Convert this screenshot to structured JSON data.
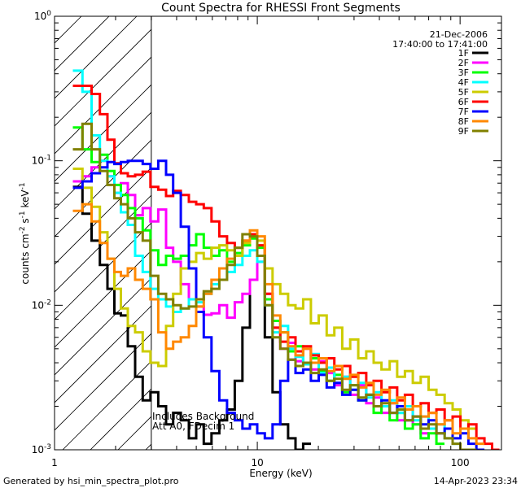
{
  "chart_data": {
    "type": "line",
    "title": "Count Spectra for RHESSI Front Segments",
    "xlabel": "Energy (keV)",
    "ylabel": {
      "base": "counts cm",
      "exp1": "-2",
      "mid1": " s",
      "exp2": "-1",
      "mid2": " keV",
      "exp3": "-1"
    },
    "xscale": "log",
    "yscale": "log",
    "xlim": [
      1.0,
      160.0
    ],
    "ylim": [
      0.001,
      1.0
    ],
    "x_ticks": [
      {
        "value": 1,
        "label": "1"
      },
      {
        "value": 10,
        "label": "10"
      },
      {
        "value": 100,
        "label": "100"
      }
    ],
    "y_ticks": [
      {
        "value": 1.0,
        "base": "10",
        "exp": "0"
      },
      {
        "value": 0.1,
        "base": "10",
        "exp": "-1"
      },
      {
        "value": 0.01,
        "base": "10",
        "exp": "-2"
      },
      {
        "value": 0.001,
        "base": "10",
        "exp": "-3"
      }
    ],
    "hatched_region_keV": [
      1.0,
      3.0
    ],
    "date": "21-Dec-2006",
    "time_range": "17:40:00 to 17:41:00",
    "annotation_lines": [
      "Includes Background",
      "Att A0, FDecim 1"
    ],
    "legend_position": "top-right",
    "series": [
      {
        "name": "1F",
        "color": "#000000",
        "x": [
          1.3,
          1.45,
          1.6,
          1.75,
          1.9,
          2.05,
          2.2,
          2.4,
          2.6,
          2.85,
          3.1,
          3.4,
          3.7,
          4.0,
          4.4,
          4.8,
          5.2,
          5.7,
          6.2,
          6.8,
          7.4,
          8.1,
          8.8,
          9.6,
          10.4,
          11.4,
          12.4,
          13.6,
          14.8,
          16.1,
          17.6
        ],
        "values": [
          0.066,
          0.043,
          0.028,
          0.019,
          0.013,
          0.0088,
          0.0085,
          0.0052,
          0.0032,
          0.0022,
          0.0025,
          0.002,
          0.0015,
          0.0018,
          0.0016,
          0.0012,
          0.0015,
          0.0011,
          0.0013,
          0.0016,
          0.0019,
          0.003,
          0.007,
          0.015,
          0.022,
          0.006,
          0.0025,
          0.0015,
          0.0012,
          0.001,
          0.0011
        ]
      },
      {
        "name": "2F",
        "color": "#ff00ff",
        "x": [
          1.3,
          1.45,
          1.6,
          1.75,
          1.9,
          2.05,
          2.2,
          2.4,
          2.6,
          2.85,
          3.1,
          3.4,
          3.7,
          4.0,
          4.4,
          4.8,
          5.2,
          5.7,
          6.2,
          6.8,
          7.4,
          8.1,
          8.8,
          9.6,
          10.4,
          11.4,
          12.4,
          13.6,
          14.8,
          16.1,
          17.6,
          19.2,
          21,
          23,
          25,
          27.5,
          30,
          33,
          36,
          39,
          43,
          47,
          51,
          56,
          61,
          67
        ],
        "values": [
          0.072,
          0.078,
          0.09,
          0.1,
          0.078,
          0.06,
          0.07,
          0.058,
          0.042,
          0.047,
          0.038,
          0.046,
          0.025,
          0.02,
          0.014,
          0.011,
          0.0098,
          0.0086,
          0.0088,
          0.01,
          0.0082,
          0.0105,
          0.012,
          0.015,
          0.02,
          0.012,
          0.007,
          0.005,
          0.0055,
          0.0041,
          0.005,
          0.0036,
          0.0041,
          0.0034,
          0.0028,
          0.0032,
          0.0024,
          0.0028,
          0.0021,
          0.0023,
          0.0018,
          0.0021,
          0.0016,
          0.0019,
          0.0015,
          0.0013
        ]
      },
      {
        "name": "3F",
        "color": "#00ff00",
        "x": [
          1.3,
          1.45,
          1.6,
          1.75,
          1.9,
          2.05,
          2.2,
          2.4,
          2.6,
          2.85,
          3.1,
          3.4,
          3.7,
          4.0,
          4.4,
          4.8,
          5.2,
          5.7,
          6.2,
          6.8,
          7.4,
          8.1,
          8.8,
          9.6,
          10.4,
          11.4,
          12.4,
          13.6,
          14.8,
          16.1,
          17.6,
          19.2,
          21,
          23,
          25,
          27.5,
          30,
          33,
          36,
          39,
          43,
          47,
          51,
          56,
          61,
          67,
          73,
          80
        ],
        "values": [
          0.17,
          0.12,
          0.098,
          0.11,
          0.085,
          0.068,
          0.058,
          0.047,
          0.04,
          0.033,
          0.024,
          0.019,
          0.022,
          0.021,
          0.022,
          0.026,
          0.031,
          0.025,
          0.022,
          0.024,
          0.02,
          0.023,
          0.026,
          0.029,
          0.025,
          0.011,
          0.0078,
          0.0065,
          0.0048,
          0.0052,
          0.004,
          0.0043,
          0.0035,
          0.003,
          0.0033,
          0.0025,
          0.0028,
          0.0022,
          0.0024,
          0.0018,
          0.002,
          0.0016,
          0.0018,
          0.0014,
          0.0015,
          0.0012,
          0.0013,
          0.0011
        ]
      },
      {
        "name": "4F",
        "color": "#00ffff",
        "x": [
          1.3,
          1.45,
          1.6,
          1.75,
          1.9,
          2.05,
          2.2,
          2.4,
          2.6,
          2.85,
          3.1,
          3.4,
          3.7,
          4.0,
          4.4,
          4.8,
          5.2,
          5.7,
          6.2,
          6.8,
          7.4,
          8.1,
          8.8,
          9.6,
          10.4,
          11.4,
          12.4,
          13.6,
          14.8,
          16.1,
          17.6,
          19.2,
          21,
          23,
          25,
          27.5,
          30,
          33,
          36,
          39,
          43,
          47,
          51,
          56,
          61,
          67,
          73,
          80,
          88,
          96
        ],
        "values": [
          0.42,
          0.3,
          0.15,
          0.1,
          0.078,
          0.06,
          0.044,
          0.036,
          0.022,
          0.017,
          0.013,
          0.011,
          0.0098,
          0.009,
          0.0095,
          0.011,
          0.0105,
          0.012,
          0.014,
          0.015,
          0.017,
          0.019,
          0.022,
          0.024,
          0.02,
          0.01,
          0.0065,
          0.0072,
          0.005,
          0.0044,
          0.0039,
          0.0046,
          0.0034,
          0.0037,
          0.0029,
          0.0032,
          0.0026,
          0.0029,
          0.0023,
          0.0025,
          0.002,
          0.0022,
          0.0018,
          0.002,
          0.0016,
          0.0017,
          0.0014,
          0.0015,
          0.0012,
          0.0011
        ]
      },
      {
        "name": "5F",
        "color": "#cccc00",
        "x": [
          1.3,
          1.45,
          1.6,
          1.75,
          1.9,
          2.05,
          2.2,
          2.4,
          2.6,
          2.85,
          3.1,
          3.4,
          3.7,
          4.0,
          4.4,
          4.8,
          5.2,
          5.7,
          6.2,
          6.8,
          7.4,
          8.1,
          8.8,
          9.6,
          10.4,
          11.4,
          12.4,
          13.6,
          14.8,
          16.1,
          17.6,
          19.2,
          21,
          23,
          25,
          27.5,
          30,
          33,
          36,
          39,
          43,
          47,
          51,
          56,
          61,
          67,
          73,
          80,
          88,
          96,
          105,
          115
        ],
        "values": [
          0.088,
          0.065,
          0.048,
          0.032,
          0.021,
          0.013,
          0.0095,
          0.0072,
          0.0065,
          0.0048,
          0.004,
          0.0038,
          0.0072,
          0.012,
          0.018,
          0.02,
          0.023,
          0.021,
          0.025,
          0.026,
          0.024,
          0.022,
          0.027,
          0.03,
          0.028,
          0.018,
          0.014,
          0.012,
          0.01,
          0.0095,
          0.011,
          0.0075,
          0.0085,
          0.0062,
          0.007,
          0.005,
          0.0058,
          0.0043,
          0.0048,
          0.004,
          0.0036,
          0.0041,
          0.0032,
          0.0035,
          0.0029,
          0.0032,
          0.0026,
          0.0024,
          0.0021,
          0.0019,
          0.0016,
          0.0014
        ]
      },
      {
        "name": "6F",
        "color": "#ff0000",
        "x": [
          1.3,
          1.45,
          1.6,
          1.75,
          1.9,
          2.05,
          2.2,
          2.4,
          2.6,
          2.85,
          3.1,
          3.4,
          3.7,
          4.0,
          4.4,
          4.8,
          5.2,
          5.7,
          6.2,
          6.8,
          7.4,
          8.1,
          8.8,
          9.6,
          10.4,
          11.4,
          12.4,
          13.6,
          14.8,
          16.1,
          17.6,
          19.2,
          21,
          23,
          25,
          27.5,
          30,
          33,
          36,
          39,
          43,
          47,
          51,
          56,
          61,
          67,
          73,
          80,
          88,
          96,
          105,
          115,
          126,
          138,
          150
        ],
        "values": [
          0.33,
          0.33,
          0.29,
          0.21,
          0.14,
          0.096,
          0.082,
          0.078,
          0.08,
          0.084,
          0.066,
          0.063,
          0.057,
          0.062,
          0.058,
          0.052,
          0.05,
          0.047,
          0.038,
          0.03,
          0.027,
          0.025,
          0.028,
          0.031,
          0.026,
          0.012,
          0.007,
          0.0056,
          0.006,
          0.0048,
          0.0052,
          0.0045,
          0.004,
          0.0043,
          0.0036,
          0.0038,
          0.0032,
          0.0034,
          0.0028,
          0.003,
          0.0025,
          0.0027,
          0.0022,
          0.0024,
          0.002,
          0.0021,
          0.0018,
          0.0019,
          0.0016,
          0.0017,
          0.0014,
          0.0015,
          0.0012,
          0.0011,
          0.001
        ]
      },
      {
        "name": "7F",
        "color": "#0000ff",
        "x": [
          1.3,
          1.45,
          1.6,
          1.75,
          1.9,
          2.05,
          2.2,
          2.4,
          2.6,
          2.85,
          3.1,
          3.4,
          3.7,
          4.0,
          4.4,
          4.8,
          5.2,
          5.7,
          6.2,
          6.8,
          7.4,
          8.1,
          8.8,
          9.6,
          10.4,
          11.4,
          12.4,
          13.6,
          14.8,
          16.1,
          17.6,
          19.2,
          21,
          23,
          25,
          27.5,
          30,
          33,
          36,
          39,
          43,
          47,
          51,
          56,
          61,
          67,
          73,
          80,
          88,
          96,
          105,
          115,
          126
        ],
        "values": [
          0.065,
          0.072,
          0.082,
          0.09,
          0.098,
          0.095,
          0.098,
          0.1,
          0.1,
          0.095,
          0.088,
          0.1,
          0.08,
          0.06,
          0.035,
          0.018,
          0.009,
          0.006,
          0.0035,
          0.0022,
          0.0018,
          0.0016,
          0.0014,
          0.0015,
          0.0013,
          0.0012,
          0.0015,
          0.003,
          0.0042,
          0.0034,
          0.0036,
          0.003,
          0.0033,
          0.0027,
          0.0029,
          0.0024,
          0.0026,
          0.0022,
          0.0024,
          0.002,
          0.0022,
          0.0018,
          0.002,
          0.0016,
          0.0017,
          0.0015,
          0.0016,
          0.0013,
          0.0014,
          0.0012,
          0.0013,
          0.0011,
          0.001
        ]
      },
      {
        "name": "8F",
        "color": "#ff8800",
        "x": [
          1.3,
          1.45,
          1.6,
          1.75,
          1.9,
          2.05,
          2.2,
          2.4,
          2.6,
          2.85,
          3.1,
          3.4,
          3.7,
          4.0,
          4.4,
          4.8,
          5.2,
          5.7,
          6.2,
          6.8,
          7.4,
          8.1,
          8.8,
          9.6,
          10.4,
          11.4,
          12.4,
          13.6,
          14.8,
          16.1,
          17.6,
          19.2,
          21,
          23,
          25,
          27.5,
          30,
          33,
          36,
          39,
          43,
          47,
          51,
          56,
          61,
          67,
          73,
          80,
          88,
          96,
          105,
          115,
          126
        ],
        "values": [
          0.045,
          0.05,
          0.038,
          0.027,
          0.021,
          0.017,
          0.016,
          0.018,
          0.015,
          0.013,
          0.011,
          0.0065,
          0.005,
          0.0056,
          0.006,
          0.0072,
          0.0098,
          0.012,
          0.015,
          0.018,
          0.021,
          0.025,
          0.028,
          0.033,
          0.03,
          0.014,
          0.0085,
          0.0065,
          0.0052,
          0.0045,
          0.005,
          0.004,
          0.0043,
          0.0035,
          0.0038,
          0.0031,
          0.0033,
          0.0027,
          0.0029,
          0.0024,
          0.0026,
          0.0021,
          0.0023,
          0.0019,
          0.002,
          0.0017,
          0.0018,
          0.0015,
          0.0016,
          0.0013,
          0.0014,
          0.0012,
          0.0011
        ]
      },
      {
        "name": "9F",
        "color": "#808000",
        "x": [
          1.3,
          1.45,
          1.6,
          1.75,
          1.9,
          2.05,
          2.2,
          2.4,
          2.6,
          2.85,
          3.1,
          3.4,
          3.7,
          4.0,
          4.4,
          4.8,
          5.2,
          5.7,
          6.2,
          6.8,
          7.4,
          8.1,
          8.8,
          9.6,
          10.4,
          11.4,
          12.4,
          13.6,
          14.8,
          16.1,
          17.6,
          19.2,
          21,
          23,
          25,
          27.5,
          30,
          33,
          36,
          39,
          43,
          47,
          51,
          56,
          61,
          67,
          73,
          80,
          88,
          96,
          105,
          115
        ],
        "values": [
          0.12,
          0.18,
          0.12,
          0.085,
          0.068,
          0.055,
          0.05,
          0.04,
          0.032,
          0.028,
          0.016,
          0.012,
          0.011,
          0.01,
          0.0095,
          0.0098,
          0.011,
          0.0125,
          0.013,
          0.015,
          0.019,
          0.025,
          0.031,
          0.03,
          0.022,
          0.01,
          0.006,
          0.005,
          0.0042,
          0.0038,
          0.004,
          0.0034,
          0.0036,
          0.003,
          0.0031,
          0.0026,
          0.0028,
          0.0023,
          0.0024,
          0.002,
          0.0021,
          0.0018,
          0.0019,
          0.0016,
          0.0017,
          0.0014,
          0.0015,
          0.0013,
          0.0012,
          0.0011,
          0.001,
          0.001
        ]
      }
    ]
  },
  "footer": {
    "generated_by": "Generated by hsi_min_spectra_plot.pro",
    "timestamp": "14-Apr-2023 23:34"
  }
}
